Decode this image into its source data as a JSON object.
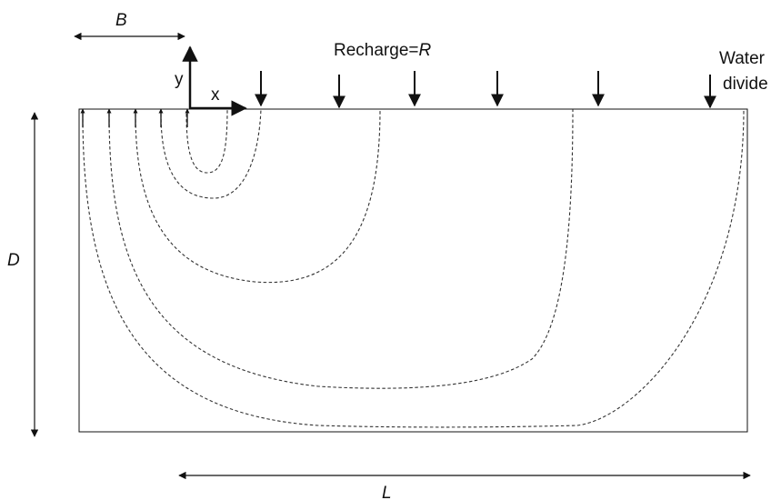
{
  "labels": {
    "B": "B",
    "D": "D",
    "L": "L",
    "y": "y",
    "x": "x",
    "recharge_prefix": "Recharge=",
    "recharge_symbol": "R",
    "water_divide_line1": "Water",
    "water_divide_line2": "divide"
  },
  "colors": {
    "line": "#111111",
    "flowline": "#333333",
    "background": "#ffffff"
  },
  "icons": {
    "recharge_arrows": "down-arrow",
    "discharge_arrows": "up-arrow"
  }
}
